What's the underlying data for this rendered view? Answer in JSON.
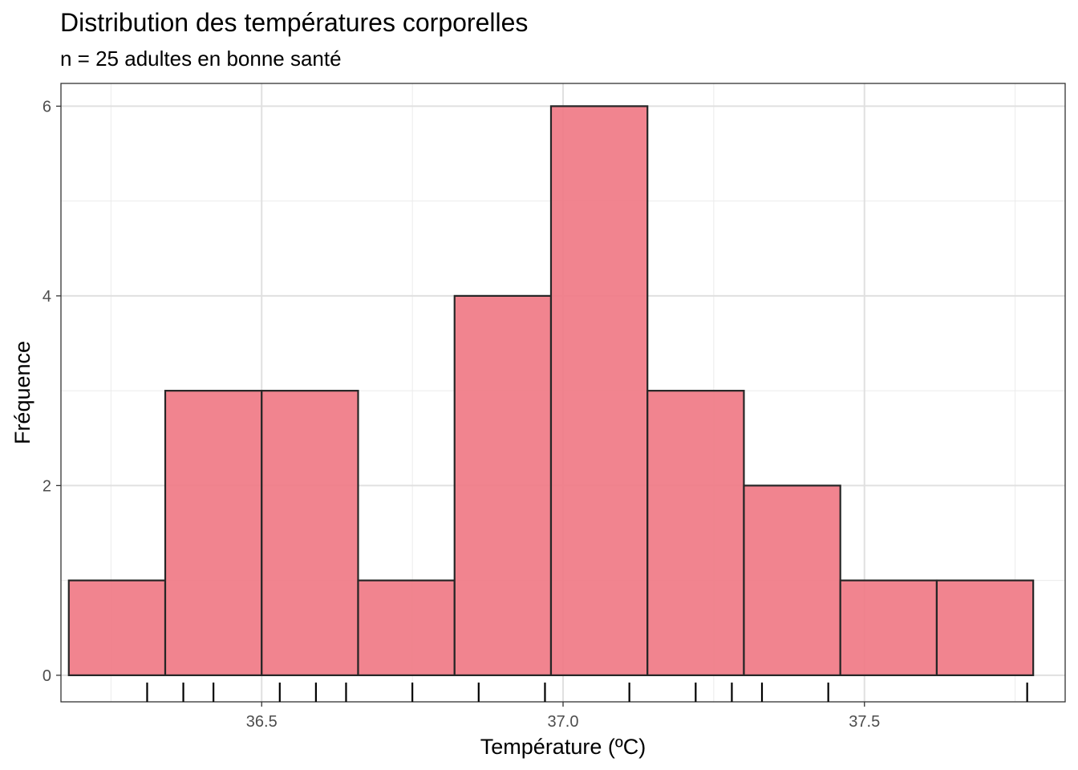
{
  "chart_data": {
    "type": "histogram",
    "title": "Distribution des températures corporelles",
    "subtitle": "n = 25 adultes en bonne santé",
    "xlabel": "Température (ºC)",
    "ylabel": "Fréquence",
    "xlim": [
      36.167,
      37.833
    ],
    "ylim": [
      -0.28,
      6.24
    ],
    "x_ticks": [
      36.5,
      37.0,
      37.5
    ],
    "x_tick_labels": [
      "36.5",
      "37.0",
      "37.5"
    ],
    "y_ticks": [
      0,
      2,
      4,
      6
    ],
    "y_tick_labels": [
      "0",
      "2",
      "4",
      "6"
    ],
    "x_minor_ticks": [
      36.25,
      36.75,
      37.25,
      37.75
    ],
    "y_minor_ticks": [
      1,
      3,
      5
    ],
    "bins": [
      {
        "x0": 36.18,
        "x1": 36.34,
        "count": 1
      },
      {
        "x0": 36.34,
        "x1": 36.5,
        "count": 3
      },
      {
        "x0": 36.5,
        "x1": 36.66,
        "count": 3
      },
      {
        "x0": 36.66,
        "x1": 36.82,
        "count": 1
      },
      {
        "x0": 36.82,
        "x1": 36.98,
        "count": 4
      },
      {
        "x0": 36.98,
        "x1": 37.14,
        "count": 6
      },
      {
        "x0": 37.14,
        "x1": 37.3,
        "count": 3
      },
      {
        "x0": 37.3,
        "x1": 37.46,
        "count": 2
      },
      {
        "x0": 37.46,
        "x1": 37.62,
        "count": 1
      },
      {
        "x0": 37.62,
        "x1": 37.78,
        "count": 1
      }
    ],
    "rug": [
      36.31,
      36.37,
      36.42,
      36.53,
      36.59,
      36.64,
      36.75,
      36.86,
      36.97,
      37.11,
      37.22,
      37.28,
      37.33,
      37.44,
      37.77
    ],
    "bar_fill": "#f07a85",
    "bar_stroke": "#262626",
    "grid": true
  }
}
